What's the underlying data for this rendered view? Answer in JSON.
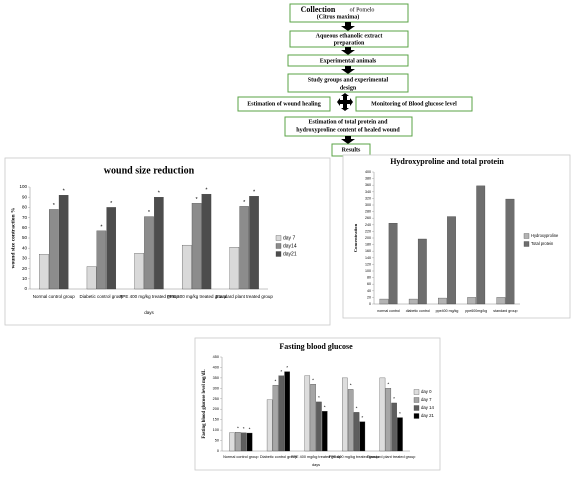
{
  "flowchart": {
    "nodes": [
      {
        "lines": [
          "Collection",
          "of Pomelo",
          "(Citrus maxima)"
        ]
      },
      {
        "lines": [
          "Aqueous ethanolic extract",
          "preparation"
        ]
      },
      {
        "lines": [
          "Experimental animals"
        ]
      },
      {
        "lines": [
          "Study groups and experimental",
          "design"
        ]
      },
      {
        "lines": [
          "Estimation of wound healing"
        ]
      },
      {
        "lines": [
          "Monitoring of Blood glucose level"
        ]
      },
      {
        "lines": [
          "Estimation of total protein and",
          "hydroxyproline content of healed wound"
        ]
      },
      {
        "lines": [
          "Results"
        ]
      }
    ]
  },
  "chart_data": [
    {
      "type": "bar",
      "title": "wound size reduction",
      "y_label": "wound size contraction %",
      "x_label": "days",
      "categories": [
        "Normal control group",
        "Diabetic control group",
        "PPE 400 mg/kg treated group",
        "PPE 600 mg/kg treated group",
        "Standard plant treated group"
      ],
      "series": [
        {
          "name": "day 7",
          "color": "#d9d9d9",
          "values": [
            34,
            22,
            35,
            43,
            41
          ]
        },
        {
          "name": "day14",
          "color": "#8c8c8c",
          "values": [
            78,
            57,
            71,
            84,
            81
          ]
        },
        {
          "name": "day21",
          "color": "#4d4d4d",
          "values": [
            92,
            80,
            90,
            93,
            91
          ]
        }
      ],
      "ylim": [
        0,
        100
      ],
      "yticks": [
        0,
        10,
        20,
        30,
        40,
        50,
        60,
        70,
        80,
        90,
        100
      ],
      "grid": false,
      "legend": "right",
      "annotation": "*"
    },
    {
      "type": "bar",
      "title": "Hydroxyproline and total protein",
      "y_label": "Concentration",
      "categories": [
        "normal control",
        "diabetic control",
        "ppe400 mg/kg",
        "ppe600mg/kg",
        "standard group"
      ],
      "series": [
        {
          "name": "Hydroxyproline",
          "color": "#b3b3b3",
          "values": [
            15,
            15,
            18,
            20,
            20
          ]
        },
        {
          "name": "Total protein",
          "color": "#6e6e6e",
          "values": [
            245,
            197,
            265,
            358,
            318
          ]
        }
      ],
      "ylim": [
        0,
        400
      ],
      "yticks": [
        0,
        20,
        40,
        60,
        80,
        100,
        120,
        140,
        160,
        180,
        200,
        220,
        240,
        260,
        280,
        300,
        320,
        340,
        360,
        380,
        400
      ],
      "grid": false,
      "legend": "right"
    },
    {
      "type": "bar",
      "title": "Fasting blood glucose",
      "y_label": "Fasting blood glucose level mg/dL",
      "x_label": "days",
      "categories": [
        "Normal control group",
        "Diabetic control group",
        "PPE 400 mg/kg treated group",
        "PPE 600 mg/kg treated group",
        "Standard plant treated group"
      ],
      "series": [
        {
          "name": "day 0",
          "color": "#dddddd",
          "values": [
            88,
            245,
            360,
            350,
            350
          ]
        },
        {
          "name": "day 7",
          "color": "#a6a6a6",
          "values": [
            90,
            315,
            320,
            295,
            300
          ]
        },
        {
          "name": "day 14",
          "color": "#5e5e5e",
          "values": [
            87,
            360,
            235,
            185,
            230
          ]
        },
        {
          "name": "day 21",
          "color": "#000000",
          "values": [
            86,
            380,
            190,
            140,
            160
          ]
        }
      ],
      "ylim": [
        0,
        450
      ],
      "yticks": [
        0,
        50,
        100,
        150,
        200,
        250,
        300,
        350,
        400,
        450
      ],
      "grid": false,
      "legend": "right",
      "annotation": "*"
    }
  ]
}
